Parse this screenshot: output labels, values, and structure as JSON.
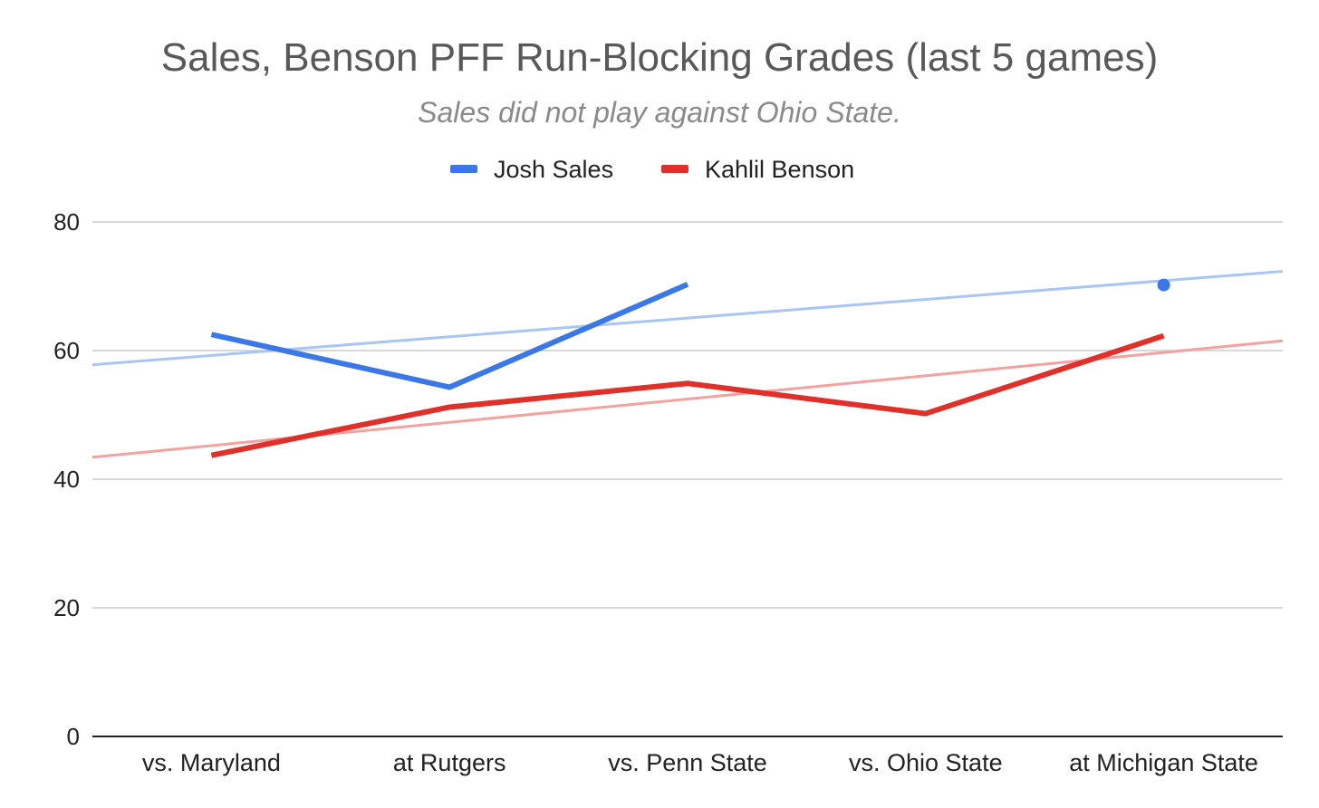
{
  "chart_data": {
    "type": "line",
    "title": "Sales, Benson PFF Run-Blocking Grades (last 5 games)",
    "subtitle": "Sales did not play against Ohio State.",
    "categories": [
      "vs. Maryland",
      "at Rutgers",
      "vs. Penn State",
      "vs. Ohio State",
      "at Michigan State"
    ],
    "ylim": [
      0,
      80
    ],
    "yticks": [
      0,
      20,
      40,
      60,
      80
    ],
    "grid": true,
    "legend_position": "top",
    "series": [
      {
        "name": "Josh Sales",
        "color": "#3b78e7",
        "trend_color": "#a9c5f5",
        "values": [
          62.5,
          54.3,
          70.3,
          null,
          70.2
        ]
      },
      {
        "name": "Kahlil Benson",
        "color": "#e0302a",
        "trend_color": "#f2a29f",
        "values": [
          43.7,
          51.2,
          54.9,
          50.2,
          62.3
        ]
      }
    ],
    "trendlines": true
  }
}
